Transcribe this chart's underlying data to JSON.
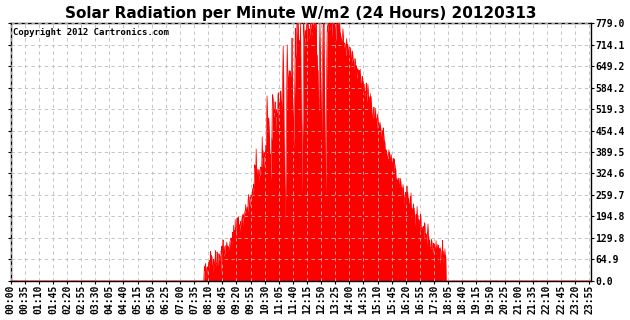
{
  "title": "Solar Radiation per Minute W/m2 (24 Hours) 20120313",
  "copyright_text": "Copyright 2012 Cartronics.com",
  "yticks": [
    0.0,
    64.9,
    129.8,
    194.8,
    259.7,
    324.6,
    389.5,
    454.4,
    519.3,
    584.2,
    649.2,
    714.1,
    779.0
  ],
  "ymax": 779.0,
  "ymin": 0.0,
  "fill_color": "#FF0000",
  "line_color": "#FF0000",
  "background_color": "#FFFFFF",
  "grid_color": "#BBBBBB",
  "title_fontsize": 11,
  "tick_fontsize": 7,
  "copyright_fontsize": 6.5,
  "sunrise_min": 480,
  "sunset_min": 1080,
  "peak_min": 770,
  "peak_val": 779.0,
  "xtick_step": 35
}
